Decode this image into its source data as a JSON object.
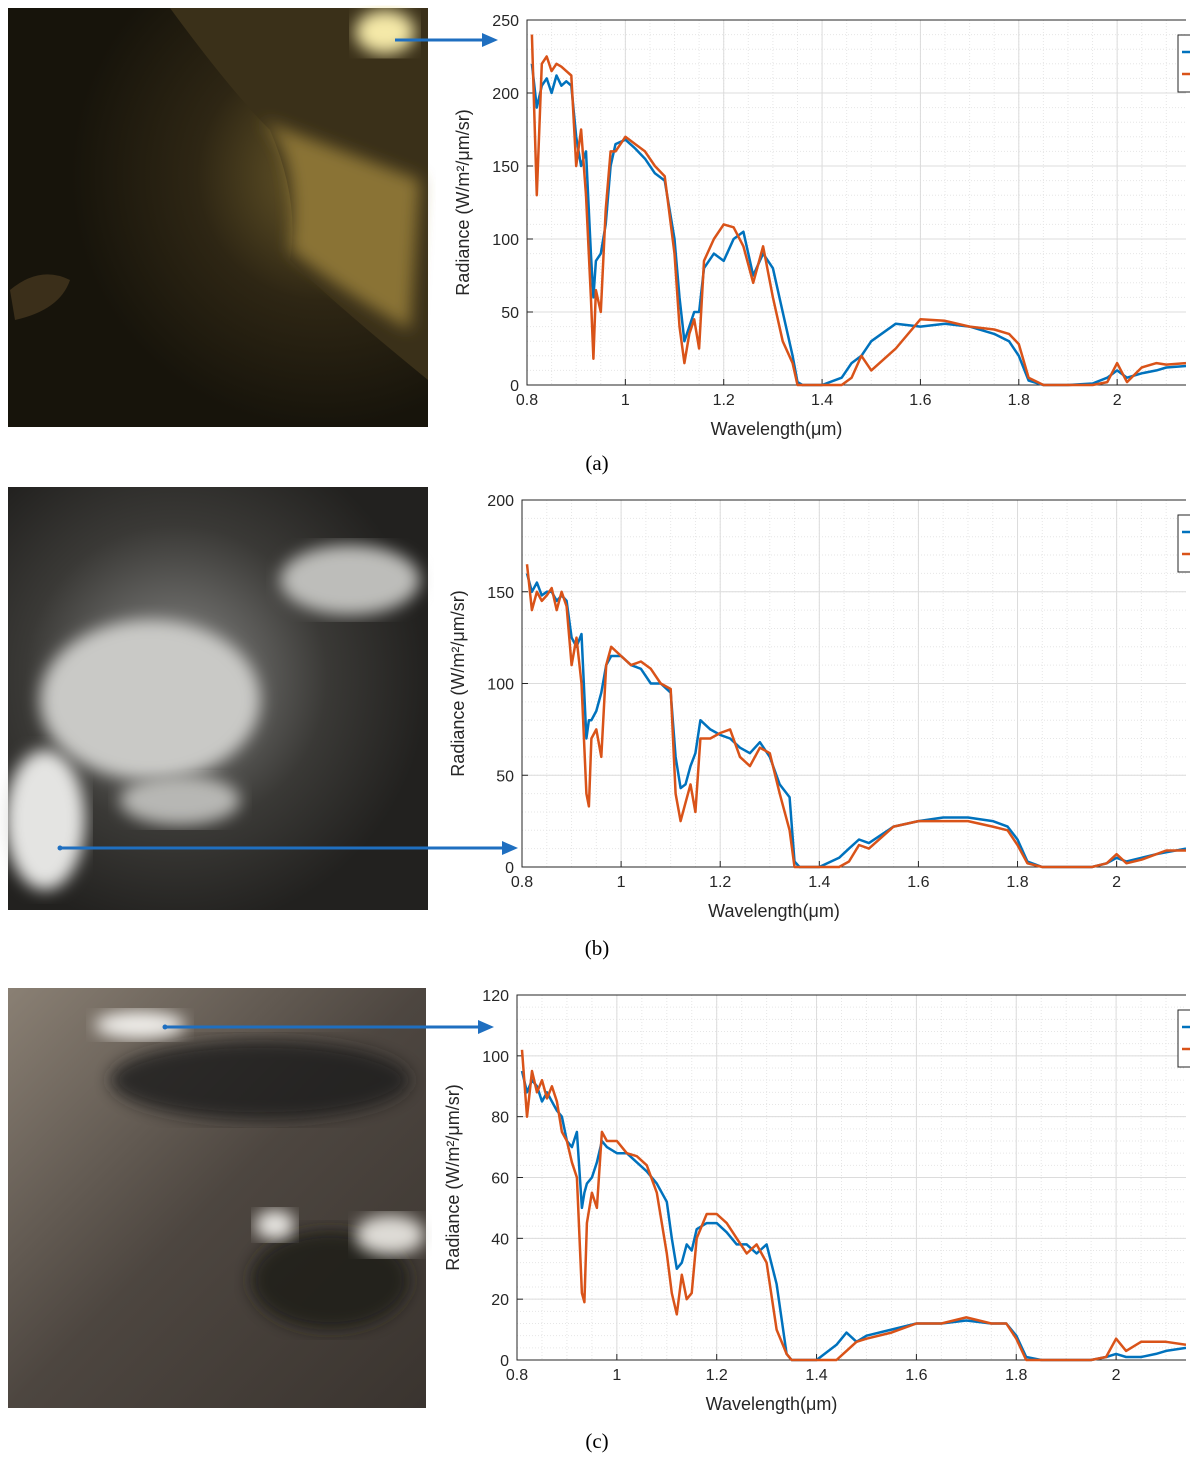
{
  "chart_data": [
    {
      "type": "line",
      "caption": "(a)",
      "xlabel": "Wavelength(μm)",
      "ylabel": "Radiance (W/m²/μm/sr)",
      "x": [
        0.81,
        0.82,
        0.83,
        0.84,
        0.85,
        0.86,
        0.87,
        0.88,
        0.89,
        0.9,
        0.91,
        0.92,
        0.93,
        0.935,
        0.94,
        0.95,
        0.96,
        0.97,
        0.98,
        1,
        1.02,
        1.04,
        1.06,
        1.08,
        1.1,
        1.11,
        1.12,
        1.13,
        1.14,
        1.15,
        1.16,
        1.18,
        1.2,
        1.22,
        1.24,
        1.26,
        1.28,
        1.3,
        1.32,
        1.34,
        1.35,
        1.36,
        1.4,
        1.44,
        1.46,
        1.48,
        1.5,
        1.55,
        1.6,
        1.65,
        1.7,
        1.75,
        1.78,
        1.8,
        1.82,
        1.85,
        1.9,
        1.95,
        1.98,
        2,
        2.02,
        2.05,
        2.08,
        2.1,
        2.14
      ],
      "series": [
        {
          "color": "#0072bd",
          "values": [
            220,
            190,
            205,
            210,
            200,
            212,
            205,
            208,
            205,
            170,
            150,
            160,
            90,
            60,
            85,
            90,
            110,
            150,
            165,
            168,
            162,
            155,
            145,
            140,
            100,
            60,
            30,
            40,
            50,
            50,
            80,
            90,
            85,
            100,
            105,
            75,
            90,
            80,
            50,
            20,
            2,
            0,
            0,
            5,
            15,
            20,
            30,
            42,
            40,
            42,
            40,
            35,
            30,
            20,
            3,
            0,
            0,
            1,
            5,
            10,
            5,
            8,
            10,
            12,
            13
          ]
        },
        {
          "color": "#d95319",
          "values": [
            240,
            130,
            220,
            225,
            215,
            220,
            218,
            215,
            212,
            150,
            175,
            130,
            60,
            18,
            65,
            50,
            120,
            160,
            160,
            170,
            165,
            160,
            150,
            143,
            90,
            40,
            15,
            35,
            45,
            25,
            85,
            100,
            110,
            108,
            95,
            70,
            95,
            60,
            30,
            15,
            0,
            0,
            0,
            0,
            5,
            20,
            10,
            25,
            45,
            44,
            40,
            38,
            35,
            28,
            5,
            0,
            0,
            0,
            2,
            15,
            2,
            12,
            15,
            14,
            15
          ]
        }
      ],
      "xlim": [
        0.8,
        2.14
      ],
      "xticks": [
        0.8,
        1,
        1.2,
        1.4,
        1.6,
        1.8,
        2
      ],
      "ylim": [
        0,
        250
      ],
      "yticks": [
        0,
        50,
        100,
        150,
        200,
        250
      ],
      "grid": true,
      "minor_grid": true,
      "legend": "upper right"
    },
    {
      "type": "line",
      "caption": "(b)",
      "xlabel": "Wavelength(μm)",
      "ylabel": "Radiance (W/m²/μm/sr)",
      "x": [
        0.81,
        0.82,
        0.83,
        0.84,
        0.85,
        0.86,
        0.87,
        0.88,
        0.89,
        0.9,
        0.91,
        0.92,
        0.93,
        0.935,
        0.94,
        0.95,
        0.96,
        0.97,
        0.98,
        1,
        1.02,
        1.04,
        1.06,
        1.08,
        1.1,
        1.11,
        1.12,
        1.13,
        1.14,
        1.15,
        1.16,
        1.18,
        1.2,
        1.22,
        1.24,
        1.26,
        1.28,
        1.3,
        1.32,
        1.34,
        1.35,
        1.36,
        1.4,
        1.44,
        1.46,
        1.48,
        1.5,
        1.55,
        1.6,
        1.65,
        1.7,
        1.75,
        1.78,
        1.8,
        1.82,
        1.85,
        1.9,
        1.95,
        1.98,
        2,
        2.02,
        2.05,
        2.08,
        2.1,
        2.14
      ],
      "series": [
        {
          "color": "#0072bd",
          "values": [
            160,
            150,
            155,
            148,
            150,
            150,
            145,
            148,
            145,
            125,
            120,
            127,
            70,
            80,
            80,
            85,
            95,
            110,
            115,
            115,
            110,
            108,
            100,
            100,
            95,
            60,
            43,
            45,
            55,
            62,
            80,
            75,
            72,
            70,
            65,
            62,
            68,
            60,
            45,
            38,
            3,
            0,
            0,
            5,
            10,
            15,
            13,
            22,
            25,
            27,
            27,
            25,
            22,
            15,
            3,
            0,
            0,
            0,
            2,
            5,
            3,
            5,
            7,
            8,
            10
          ]
        },
        {
          "color": "#d95319",
          "values": [
            165,
            140,
            150,
            145,
            148,
            152,
            140,
            150,
            142,
            110,
            125,
            100,
            40,
            33,
            70,
            75,
            60,
            110,
            120,
            115,
            110,
            112,
            108,
            100,
            97,
            40,
            25,
            35,
            45,
            30,
            70,
            70,
            73,
            75,
            60,
            55,
            65,
            62,
            40,
            20,
            0,
            0,
            0,
            0,
            3,
            12,
            10,
            22,
            25,
            25,
            25,
            22,
            20,
            12,
            2,
            0,
            0,
            0,
            2,
            7,
            2,
            4,
            7,
            9,
            9
          ]
        }
      ],
      "xlim": [
        0.8,
        2.14
      ],
      "xticks": [
        0.8,
        1,
        1.2,
        1.4,
        1.6,
        1.8,
        2
      ],
      "ylim": [
        0,
        200
      ],
      "yticks": [
        0,
        50,
        100,
        150,
        200
      ],
      "grid": true,
      "minor_grid": true,
      "legend": "upper right"
    },
    {
      "type": "line",
      "caption": "(c)",
      "xlabel": "Wavelength(μm)",
      "ylabel": "Radiance (W/m²/μm/sr)",
      "x": [
        0.81,
        0.82,
        0.83,
        0.84,
        0.85,
        0.86,
        0.87,
        0.88,
        0.89,
        0.9,
        0.91,
        0.92,
        0.93,
        0.935,
        0.94,
        0.95,
        0.96,
        0.97,
        0.98,
        1,
        1.02,
        1.04,
        1.06,
        1.08,
        1.1,
        1.11,
        1.12,
        1.13,
        1.14,
        1.15,
        1.16,
        1.18,
        1.2,
        1.22,
        1.24,
        1.26,
        1.28,
        1.3,
        1.32,
        1.34,
        1.35,
        1.36,
        1.4,
        1.44,
        1.46,
        1.48,
        1.5,
        1.55,
        1.6,
        1.65,
        1.7,
        1.75,
        1.78,
        1.8,
        1.82,
        1.85,
        1.9,
        1.95,
        1.98,
        2,
        2.02,
        2.05,
        2.08,
        2.1,
        2.14
      ],
      "series": [
        {
          "color": "#0072bd",
          "values": [
            95,
            88,
            92,
            90,
            85,
            88,
            85,
            82,
            80,
            72,
            70,
            75,
            50,
            55,
            58,
            60,
            65,
            72,
            70,
            68,
            68,
            65,
            62,
            58,
            52,
            40,
            30,
            32,
            38,
            36,
            43,
            45,
            45,
            42,
            38,
            38,
            35,
            38,
            25,
            2,
            0,
            0,
            0,
            5,
            9,
            6,
            8,
            10,
            12,
            12,
            13,
            12,
            12,
            8,
            1,
            0,
            0,
            0,
            1,
            2,
            1,
            1,
            2,
            3,
            4
          ]
        },
        {
          "color": "#d95319",
          "values": [
            102,
            80,
            95,
            88,
            92,
            86,
            90,
            85,
            75,
            72,
            65,
            60,
            22,
            19,
            45,
            55,
            50,
            75,
            72,
            72,
            68,
            67,
            64,
            55,
            35,
            22,
            15,
            28,
            20,
            22,
            40,
            48,
            48,
            45,
            40,
            35,
            38,
            32,
            10,
            2,
            0,
            0,
            0,
            0,
            3,
            6,
            7,
            9,
            12,
            12,
            14,
            12,
            12,
            7,
            0,
            0,
            0,
            0,
            1,
            7,
            3,
            6,
            6,
            6,
            5
          ]
        }
      ],
      "xlim": [
        0.8,
        2.14
      ],
      "xticks": [
        0.8,
        1,
        1.2,
        1.4,
        1.6,
        1.8,
        2
      ],
      "ylim": [
        0,
        120
      ],
      "yticks": [
        0,
        20,
        40,
        60,
        80,
        100,
        120
      ],
      "grid": true,
      "minor_grid": true,
      "legend": "upper right"
    }
  ]
}
